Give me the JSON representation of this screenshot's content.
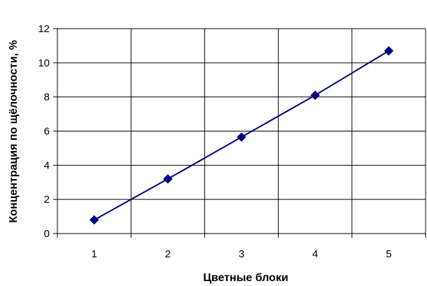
{
  "chart_data": {
    "type": "line",
    "x": [
      1,
      2,
      3,
      4,
      5
    ],
    "series": [
      {
        "values": [
          0.8,
          3.2,
          5.65,
          8.1,
          10.7
        ]
      }
    ],
    "xlabel": "Цветные блоки",
    "ylabel": "Концентрация по щёлочности, %",
    "x_ticks": [
      "1",
      "2",
      "3",
      "4",
      "5"
    ],
    "y_ticks": [
      "0",
      "2",
      "4",
      "6",
      "8",
      "10",
      "12"
    ],
    "ylim": [
      0,
      12
    ],
    "grid": true,
    "colors": {
      "series": "#000080",
      "grid": "#000000"
    }
  }
}
